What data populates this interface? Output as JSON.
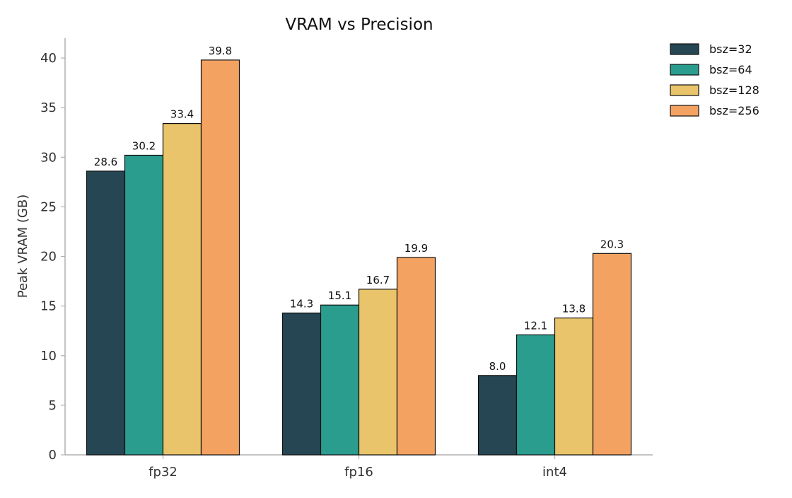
{
  "chart_data": {
    "type": "bar",
    "title": "VRAM vs Precision",
    "xlabel": "",
    "ylabel": "Peak VRAM (GB)",
    "categories": [
      "fp32",
      "fp16",
      "int4"
    ],
    "series": [
      {
        "name": "bsz=32",
        "values": [
          28.6,
          14.3,
          8.0
        ],
        "color": "#264653"
      },
      {
        "name": "bsz=64",
        "values": [
          30.2,
          15.1,
          12.1
        ],
        "color": "#2a9d8f"
      },
      {
        "name": "bsz=128",
        "values": [
          33.4,
          16.7,
          13.8
        ],
        "color": "#e9c46a"
      },
      {
        "name": "bsz=256",
        "values": [
          39.8,
          19.9,
          20.3
        ],
        "color": "#f4a261"
      }
    ],
    "value_labels": [
      [
        "28.6",
        "14.3",
        "8.0"
      ],
      [
        "30.2",
        "15.1",
        "12.1"
      ],
      [
        "33.4",
        "16.7",
        "13.8"
      ],
      [
        "39.8",
        "19.9",
        "20.3"
      ]
    ],
    "yticks": [
      0,
      5,
      10,
      15,
      20,
      25,
      30,
      35,
      40
    ],
    "ylim": [
      0,
      42
    ],
    "grid": false,
    "legend_position": "top-right-outside"
  }
}
